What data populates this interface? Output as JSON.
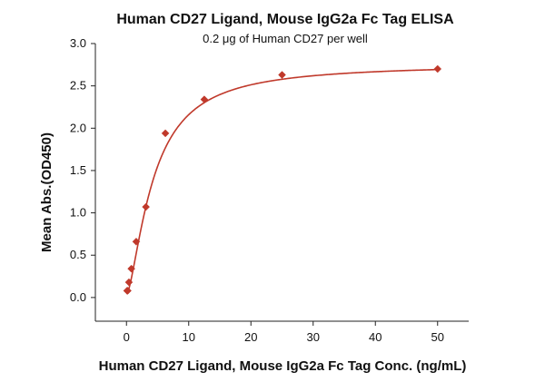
{
  "chart_data": {
    "type": "scatter",
    "title": "Human CD27 Ligand, Mouse IgG2a Fc Tag ELISA",
    "subtitle": "0.2 μg of Human CD27 per well",
    "xlabel": "Human CD27 Ligand, Mouse IgG2a Fc Tag Conc. (ng/mL)",
    "ylabel": "Mean Abs.(OD450)",
    "xlim": [
      -5,
      55
    ],
    "ylim": [
      -0.28,
      3.0
    ],
    "xticks": [
      0,
      10,
      20,
      30,
      40,
      50
    ],
    "yticks": [
      0.0,
      0.5,
      1.0,
      1.5,
      2.0,
      2.5,
      3.0
    ],
    "ytick_labels": [
      "0.0",
      "0.5",
      "1.0",
      "1.5",
      "2.0",
      "2.5",
      "3.0"
    ],
    "grid": false,
    "legend": "none",
    "series": [
      {
        "marker": "diamond",
        "color": "#c0392b",
        "points": [
          {
            "x": 0.098,
            "y": 0.08
          },
          {
            "x": 0.195,
            "y": 0.08
          },
          {
            "x": 0.391,
            "y": 0.18
          },
          {
            "x": 0.781,
            "y": 0.34
          },
          {
            "x": 1.563,
            "y": 0.66
          },
          {
            "x": 3.125,
            "y": 1.07
          },
          {
            "x": 6.25,
            "y": 1.94
          },
          {
            "x": 12.5,
            "y": 2.34
          },
          {
            "x": 25,
            "y": 2.63
          },
          {
            "x": 50,
            "y": 2.7
          }
        ]
      }
    ],
    "fit_curve": {
      "model": "4PL",
      "color": "#c0392b",
      "bottom": 0.03,
      "top": 2.76,
      "ec50": 4.3,
      "hill": 1.5
    }
  }
}
